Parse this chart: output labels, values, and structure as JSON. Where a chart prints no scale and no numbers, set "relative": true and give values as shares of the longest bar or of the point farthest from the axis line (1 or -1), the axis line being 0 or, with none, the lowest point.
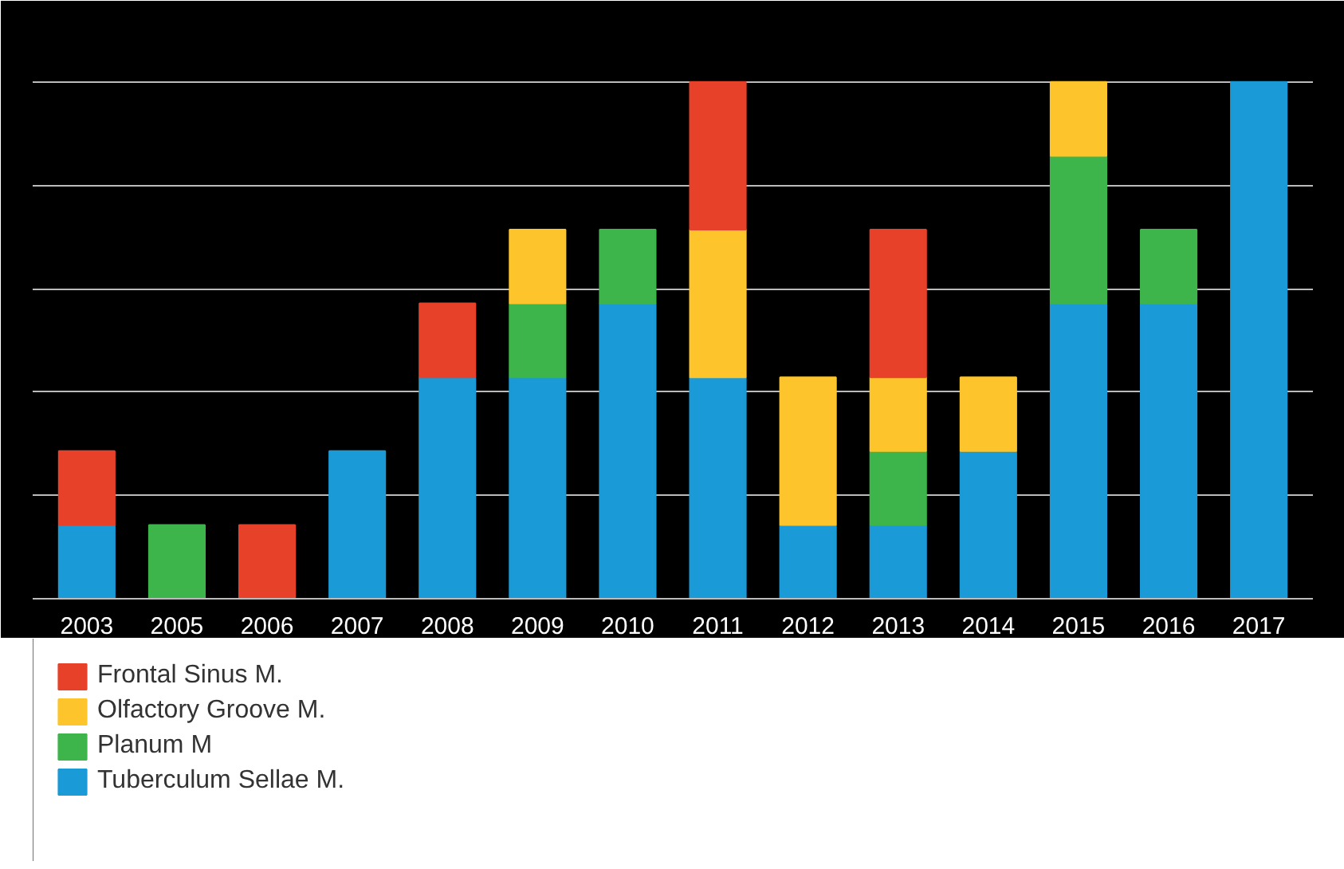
{
  "chart_data": {
    "type": "bar",
    "stacked": true,
    "relative": true,
    "grid": "y",
    "legend": "bottom left",
    "categories": [
      "2003",
      "2005",
      "2006",
      "2007",
      "2008",
      "2009",
      "2010",
      "2011",
      "2012",
      "2013",
      "2014",
      "2015",
      "2016",
      "2017"
    ],
    "series": [
      {
        "name": "Tuberculum Sellae M.",
        "color": "#1a9ad6",
        "values": [
          0.1429,
          null,
          null,
          0.2857,
          0.4286,
          0.4286,
          0.5714,
          0.4286,
          0.1429,
          0.1429,
          0.2857,
          0.5714,
          0.5714,
          1.0
        ]
      },
      {
        "name": "Planum M",
        "color": "#3db54a",
        "values": [
          null,
          0.1429,
          null,
          null,
          null,
          0.1429,
          0.1429,
          null,
          null,
          0.1429,
          null,
          0.2857,
          0.1429,
          null
        ]
      },
      {
        "name": "Olfactory Groove M.",
        "color": "#fdc52b",
        "values": [
          null,
          null,
          null,
          null,
          null,
          0.1429,
          null,
          0.2857,
          0.2857,
          0.1429,
          0.1429,
          0.1429,
          null,
          null
        ]
      },
      {
        "name": "Frontal Sinus M.",
        "color": "#e8412a",
        "values": [
          0.1429,
          null,
          0.1429,
          null,
          0.1429,
          null,
          null,
          0.2857,
          null,
          0.2857,
          null,
          null,
          null,
          null
        ]
      }
    ]
  }
}
